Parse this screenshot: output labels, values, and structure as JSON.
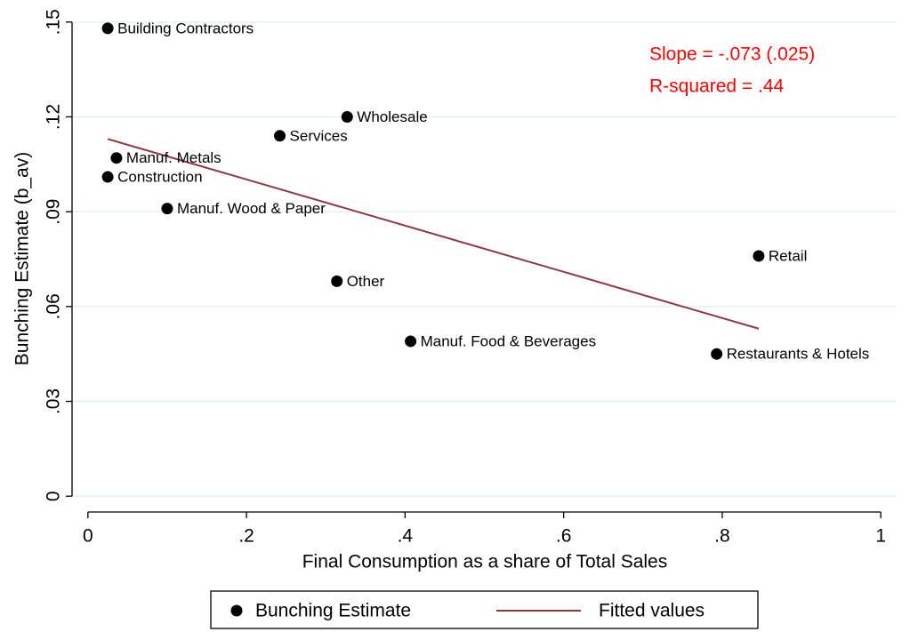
{
  "chart_data": {
    "type": "scatter",
    "x_label": "Final Consumption as a share of Total Sales",
    "y_label": "Bunching Estimate (b_av)",
    "series": [
      {
        "name": "Bunching Estimate",
        "type": "scatter",
        "color": "#000000",
        "labels": [
          "Building Contractors",
          "Wholesale",
          "Services",
          "Manuf. Metals",
          "Construction",
          "Manuf. Wood & Paper",
          "Retail",
          "Other",
          "Manuf. Food & Beverages",
          "Restaurants & Hotels"
        ],
        "x": [
          0.025,
          0.327,
          0.242,
          0.036,
          0.025,
          0.1,
          0.846,
          0.314,
          0.407,
          0.793
        ],
        "values": [
          0.148,
          0.12,
          0.114,
          0.107,
          0.101,
          0.091,
          0.076,
          0.068,
          0.049,
          0.045
        ]
      },
      {
        "name": "Fitted values",
        "type": "line",
        "color": "#8f3a3f",
        "x": [
          0.025,
          0.846
        ],
        "values": [
          0.113,
          0.053
        ]
      }
    ],
    "annotations": [
      {
        "text": "Slope = -.073 (.025)",
        "color": "#ff0000"
      },
      {
        "text": "R-squared = .44",
        "color": "#ff0000"
      }
    ],
    "xlim": [
      -0.02,
      1.02
    ],
    "ylim": [
      -0.005,
      0.155
    ],
    "xticks": [
      0,
      {
        "value": 0.2,
        "label": ".2"
      },
      {
        "value": 0.4,
        "label": ".4"
      },
      {
        "value": 0.6,
        "label": ".6"
      },
      {
        "value": 0.8,
        "label": ".8"
      },
      1
    ],
    "yticks": [
      0,
      {
        "value": 0.03,
        "label": ".03"
      },
      {
        "value": 0.06,
        "label": ".06"
      },
      {
        "value": 0.09,
        "label": ".09"
      },
      {
        "value": 0.12,
        "label": ".12"
      },
      {
        "value": 0.15,
        "label": ".15"
      }
    ],
    "grid": true,
    "grid_color": "#e6eff1",
    "legend": "bottom"
  }
}
